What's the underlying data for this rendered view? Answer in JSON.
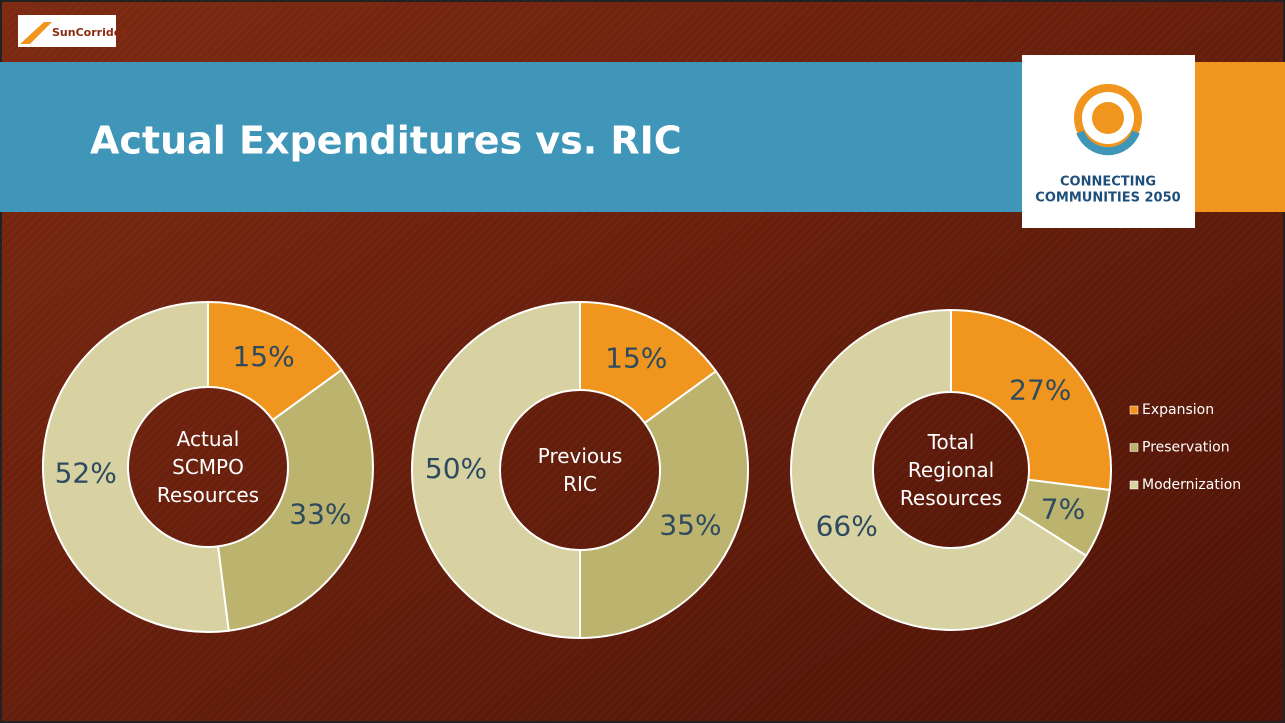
{
  "header": {
    "title": "Actual Expenditures vs. RIC",
    "left_logo": "SunCorridor",
    "right_logo": [
      "CONNECTING",
      "COMMUNITIES 2050"
    ]
  },
  "chart_data": [
    {
      "type": "donut",
      "label": "Actual SCMPO Resources",
      "categories": [
        "Expansion",
        "Preservation",
        "Modernization"
      ],
      "values": [
        15,
        33,
        52
      ],
      "value_labels": [
        "15%",
        "33%",
        "52%"
      ],
      "colors": [
        "#f0951e",
        "#bcb46e",
        "#d8d2a2"
      ]
    },
    {
      "type": "donut",
      "label": "Previous RIC",
      "categories": [
        "Expansion",
        "Preservation",
        "Modernization"
      ],
      "values": [
        15,
        35,
        50
      ],
      "value_labels": [
        "15%",
        "35%",
        "50%"
      ],
      "colors": [
        "#f0951e",
        "#bcb46e",
        "#d8d2a2"
      ]
    },
    {
      "type": "donut",
      "label": "Total Regional Resources",
      "categories": [
        "Expansion",
        "Preservation",
        "Modernization"
      ],
      "values": [
        27,
        7,
        66
      ],
      "value_labels": [
        "27%",
        "7%",
        "66%"
      ],
      "colors": [
        "#f0951e",
        "#bcb46e",
        "#d8d2a2"
      ],
      "legend": "right"
    }
  ]
}
